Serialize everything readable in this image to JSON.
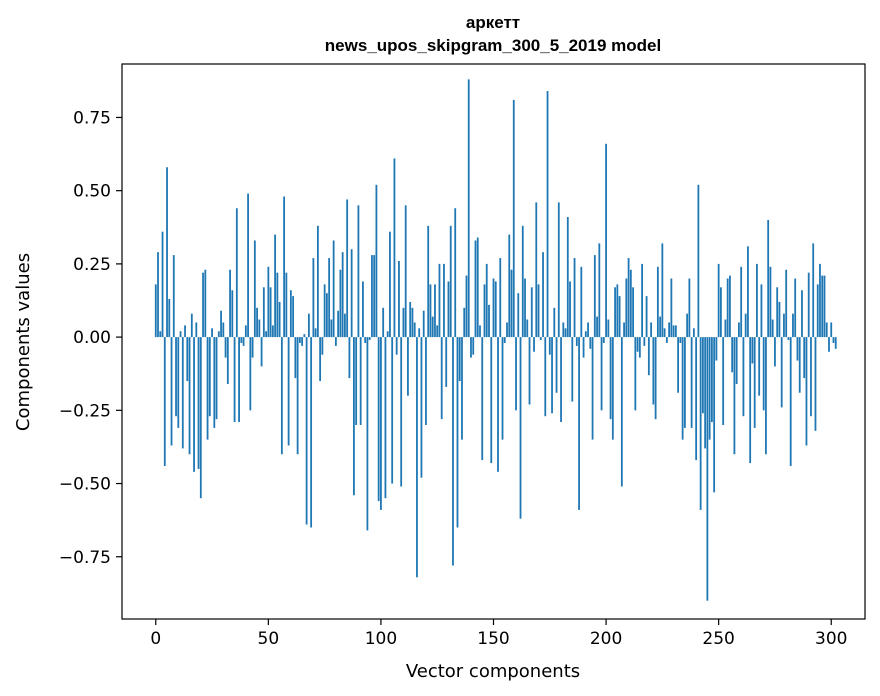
{
  "chart_data": {
    "type": "bar",
    "title_lines": [
      "аркетт",
      "news_upos_skipgram_300_5_2019 model"
    ],
    "xlabel": "Vector components",
    "ylabel": "Components values",
    "xlim": [
      -15,
      315
    ],
    "ylim": [
      -0.9625,
      0.9325
    ],
    "xticks": [
      0,
      50,
      100,
      150,
      200,
      250,
      300
    ],
    "xtick_labels": [
      "0",
      "50",
      "100",
      "150",
      "200",
      "250",
      "300"
    ],
    "yticks": [
      -0.75,
      -0.5,
      -0.25,
      0,
      0.25,
      0.5,
      0.75
    ],
    "ytick_labels": [
      "−0.75",
      "−0.50",
      "−0.25",
      "0.00",
      "0.25",
      "0.50",
      "0.75"
    ],
    "grid": false,
    "legend": "none",
    "bar_width": 0.8,
    "color": "#1f77b4",
    "x_start": 0,
    "values": [
      0.18,
      0.29,
      0.02,
      0.36,
      -0.44,
      0.58,
      0.13,
      -0.37,
      0.28,
      -0.27,
      -0.31,
      0.02,
      -0.38,
      0.04,
      -0.15,
      -0.4,
      0.08,
      -0.46,
      0.05,
      -0.45,
      -0.55,
      0.22,
      0.23,
      -0.35,
      -0.27,
      0.03,
      -0.31,
      -0.28,
      0.02,
      0.09,
      0.05,
      -0.07,
      -0.16,
      0.23,
      0.16,
      -0.29,
      0.44,
      -0.29,
      -0.02,
      -0.03,
      0.04,
      0.49,
      -0.25,
      -0.07,
      0.33,
      0.1,
      0.06,
      -0.1,
      0.17,
      0.02,
      0.24,
      0.17,
      0.04,
      0.35,
      0.22,
      0.12,
      -0.4,
      0.48,
      0.22,
      -0.37,
      0.16,
      0.14,
      -0.14,
      -0.4,
      -0.02,
      -0.03,
      0.01,
      -0.64,
      0.08,
      -0.65,
      0.27,
      0.03,
      0.38,
      -0.15,
      -0.06,
      0.18,
      0.15,
      0.27,
      0.06,
      0.33,
      -0.03,
      0.09,
      0.23,
      0.29,
      0.08,
      0.47,
      -0.14,
      0.3,
      -0.54,
      -0.3,
      0.45,
      -0.3,
      0.19,
      -0.02,
      -0.66,
      -0.01,
      0.28,
      0.28,
      0.52,
      -0.56,
      -0.59,
      0.1,
      -0.55,
      0.02,
      0.36,
      -0.5,
      0.61,
      -0.06,
      0.26,
      -0.51,
      0.1,
      0.45,
      -0.2,
      0.12,
      0.1,
      0.05,
      -0.82,
      0.03,
      -0.48,
      0.09,
      -0.3,
      0.38,
      0.18,
      0.07,
      0.18,
      0.04,
      0.25,
      -0.28,
      0.25,
      -0.17,
      0.19,
      0.38,
      -0.78,
      0.44,
      -0.65,
      -0.15,
      -0.35,
      0.1,
      0.21,
      0.88,
      -0.07,
      -0.06,
      0.33,
      0.34,
      0.04,
      -0.42,
      0.18,
      0.25,
      0.11,
      -0.43,
      0.2,
      0.19,
      -0.46,
      0.27,
      -0.35,
      -0.02,
      0.05,
      0.35,
      0.23,
      0.81,
      -0.25,
      0.15,
      -0.62,
      0.38,
      0.2,
      0.06,
      -0.23,
      0.17,
      -0.05,
      0.46,
      0.18,
      -0.01,
      0.29,
      -0.27,
      0.84,
      -0.06,
      -0.26,
      0.1,
      -0.19,
      0.46,
      -0.29,
      0.05,
      0.03,
      0.41,
      0.19,
      -0.22,
      0.27,
      -0.03,
      -0.59,
      0.24,
      -0.07,
      0.02,
      0.05,
      -0.04,
      -0.35,
      0.28,
      0.07,
      0.32,
      -0.25,
      -0.02,
      0.66,
      0.06,
      -0.28,
      -0.35,
      0.17,
      0.18,
      0.14,
      -0.51,
      0.05,
      0.2,
      0.27,
      0.23,
      0.17,
      -0.25,
      -0.05,
      -0.07,
      0.25,
      -0.03,
      0.14,
      -0.13,
      0.05,
      -0.23,
      -0.28,
      0.24,
      0.07,
      0.32,
      0.03,
      -0.02,
      0.05,
      0.2,
      0.04,
      0.04,
      -0.19,
      -0.02,
      -0.35,
      -0.31,
      0.08,
      0.2,
      -0.31,
      0.03,
      -0.42,
      0.52,
      -0.59,
      -0.26,
      -0.38,
      -0.9,
      -0.35,
      -0.29,
      -0.53,
      -0.08,
      0.25,
      0.17,
      -0.3,
      0.06,
      0.2,
      0.21,
      -0.12,
      -0.4,
      -0.16,
      0.05,
      0.24,
      -0.27,
      0.08,
      0.31,
      -0.43,
      -0.09,
      -0.31,
      0.25,
      -0.2,
      0.18,
      -0.25,
      -0.4,
      0.4,
      0.24,
      0.06,
      -0.1,
      0.17,
      0.12,
      -0.24,
      0.08,
      0.23,
      -0.01,
      -0.44,
      0.08,
      0.2,
      -0.08,
      -0.19,
      0.16,
      -0.14,
      -0.37,
      0.22,
      -0.27,
      0.32,
      -0.32,
      0.18,
      0.25,
      0.21,
      0.21,
      0.05,
      -0.05,
      0.05,
      -0.02,
      -0.04
    ]
  }
}
